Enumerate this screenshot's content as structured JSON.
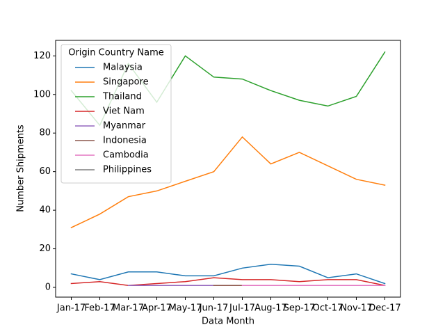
{
  "chart_data": {
    "type": "line",
    "xlabel": "Data Month",
    "ylabel": "Number Shipments",
    "categories": [
      "Jan-17",
      "Feb-17",
      "Mar-17",
      "Apr-17",
      "May-17",
      "Jun-17",
      "Jul-17",
      "Aug-17",
      "Sep-17",
      "Oct-17",
      "Nov-17",
      "Dec-17"
    ],
    "series": [
      {
        "name": "Malaysia",
        "color": "#1f77b4",
        "values": [
          7,
          4,
          8,
          8,
          6,
          6,
          10,
          12,
          11,
          5,
          7,
          2
        ]
      },
      {
        "name": "Singapore",
        "color": "#ff7f0e",
        "values": [
          31,
          38,
          47,
          50,
          55,
          60,
          78,
          64,
          70,
          63,
          56,
          53
        ]
      },
      {
        "name": "Thailand",
        "color": "#2ca02c",
        "values": [
          102,
          84,
          116,
          96,
          120,
          109,
          108,
          102,
          97,
          94,
          99,
          122
        ]
      },
      {
        "name": "Viet Nam",
        "color": "#d62728",
        "values": [
          2,
          3,
          1,
          2,
          3,
          5,
          4,
          4,
          3,
          4,
          4,
          1
        ]
      },
      {
        "name": "Myanmar",
        "color": "#9467bd",
        "values": [
          null,
          null,
          1,
          1,
          1,
          1,
          null,
          null,
          null,
          null,
          null,
          null
        ]
      },
      {
        "name": "Indonesia",
        "color": "#8c564b",
        "values": [
          null,
          null,
          null,
          null,
          null,
          1,
          1,
          null,
          null,
          null,
          null,
          null
        ]
      },
      {
        "name": "Cambodia",
        "color": "#e377c2",
        "values": [
          null,
          null,
          null,
          null,
          null,
          null,
          1,
          1,
          1,
          1,
          1,
          1
        ]
      },
      {
        "name": "Philippines",
        "color": "#7f7f7f",
        "values": [
          null,
          null,
          null,
          null,
          null,
          null,
          null,
          null,
          null,
          null,
          null,
          1
        ]
      }
    ],
    "ylim": [
      -5.05,
      128.05
    ],
    "yticks": [
      0,
      20,
      40,
      60,
      80,
      100,
      120
    ],
    "legend": {
      "title": "Origin Country Name",
      "loc": "upper left"
    }
  }
}
